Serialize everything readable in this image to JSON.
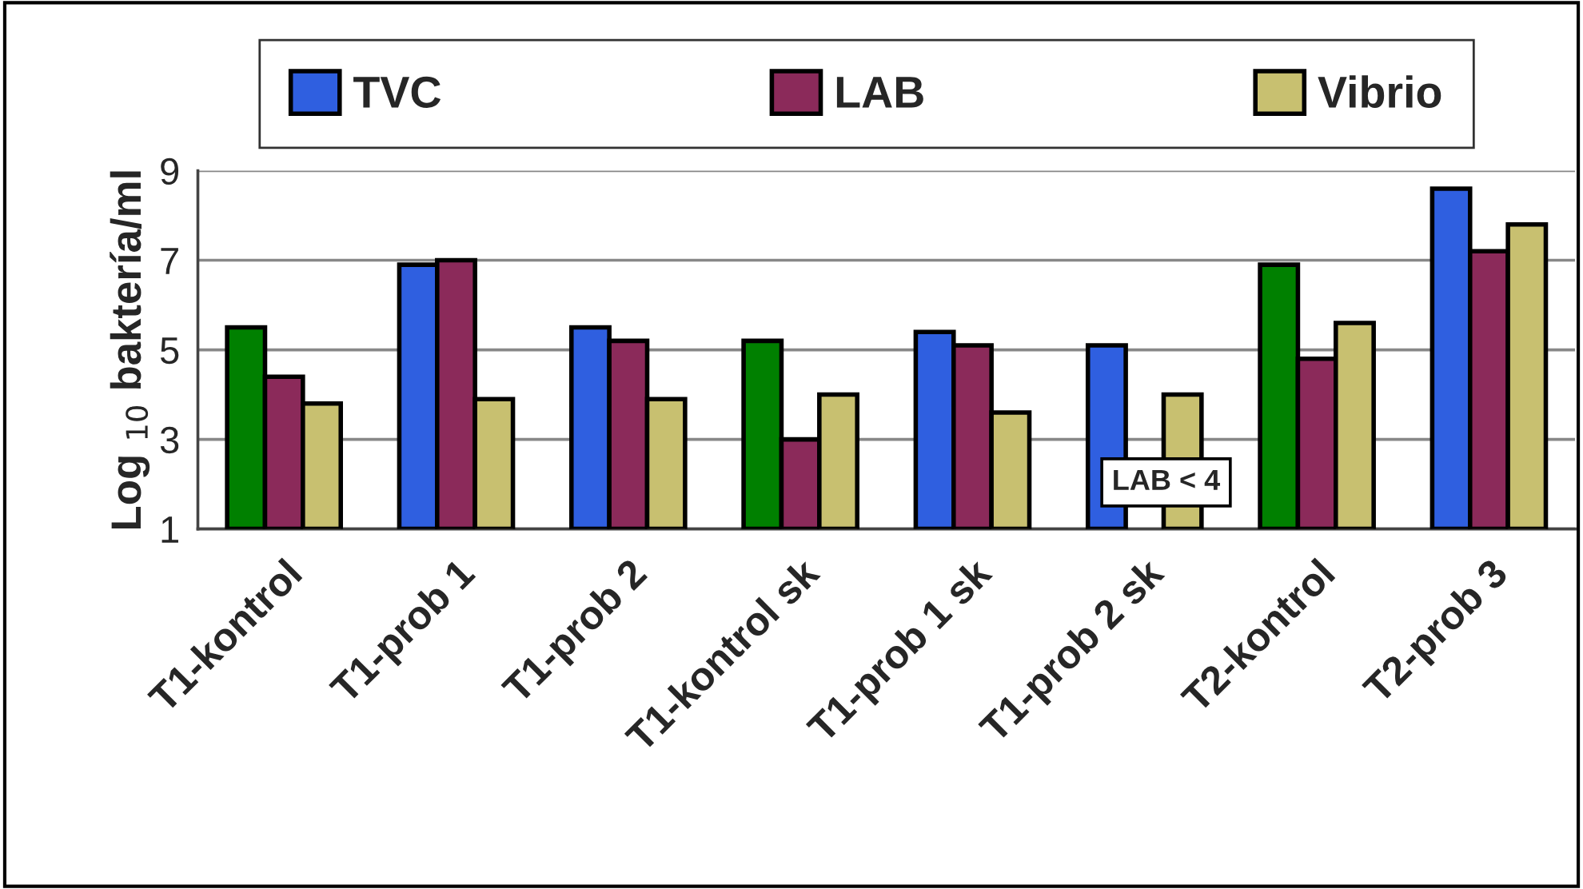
{
  "chart_data": {
    "type": "bar",
    "ylabel": "Log $_{10}$ baktería/ml",
    "categories": [
      "T1-kontrol",
      "T1-prob 1",
      "T1-prob 2",
      "T1-kontrol sk",
      "T1-prob 1 sk",
      "T1-prob 2 sk",
      "T2-kontrol",
      "T2-prob 3"
    ],
    "series": [
      {
        "name": "TVC",
        "color": "#2f5fe0",
        "colors": [
          "#008000",
          "#2f5fe0",
          "#2f5fe0",
          "#008000",
          "#2f5fe0",
          "#2f5fe0",
          "#008000",
          "#2f5fe0"
        ],
        "values": [
          5.5,
          6.9,
          5.5,
          5.2,
          5.4,
          5.1,
          6.9,
          8.6
        ]
      },
      {
        "name": "LAB",
        "color": "#8b2a5a",
        "values": [
          4.4,
          7.0,
          5.2,
          3.0,
          5.1,
          null,
          4.8,
          7.2
        ]
      },
      {
        "name": "Vibrio",
        "color": "#c8c070",
        "values": [
          3.8,
          3.9,
          3.9,
          4.0,
          3.6,
          4.0,
          5.6,
          7.8
        ]
      }
    ],
    "annotations": [
      "LAB < 4"
    ],
    "ylim": [
      1,
      9
    ],
    "yticks": [
      1,
      3,
      5,
      7,
      9
    ],
    "grid": "y",
    "legend": "top"
  }
}
